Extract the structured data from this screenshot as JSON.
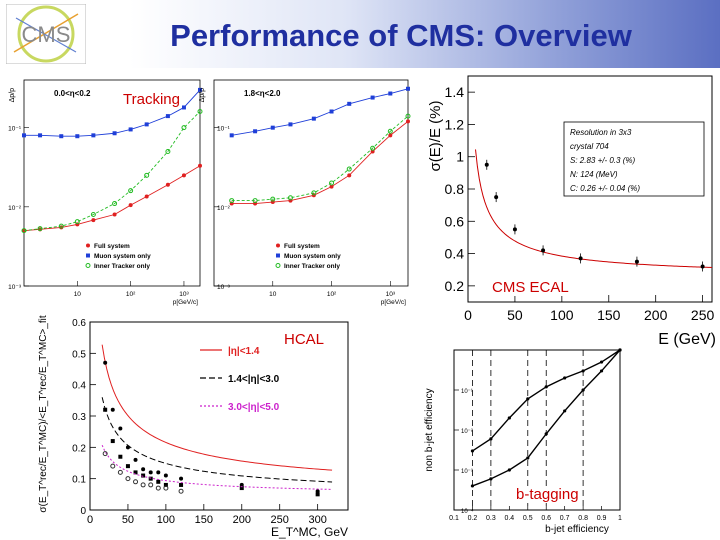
{
  "header": {
    "title": "Performance of CMS: Overview"
  },
  "overlays": {
    "tracking": "Tracking",
    "cms_ecal": "CMS ECAL",
    "hcal": "HCAL",
    "btagging": "b-tagging"
  },
  "colors": {
    "red": "#e02020",
    "blue": "#1f3fd8",
    "green": "#22bb22",
    "magenta": "#cc22cc",
    "title": "#1f2fa0"
  },
  "chart_data": [
    {
      "id": "tracking_low_eta",
      "type": "line",
      "ylabel": "Δp/p",
      "xlabel": "p[GeV/c]",
      "annotation": "0.0<η<0.2",
      "xscale": "log",
      "yscale": "log",
      "xlim": [
        1,
        2000
      ],
      "ylim": [
        0.001,
        0.4
      ],
      "xticks": [
        "10",
        "10²",
        "10³"
      ],
      "yticks": [
        "10⁻¹",
        "10⁻²",
        "10⁻³"
      ],
      "series": [
        {
          "name": "Full system",
          "color": "red",
          "x": [
            1,
            2,
            5,
            10,
            20,
            50,
            100,
            200,
            500,
            1000,
            2000
          ],
          "y": [
            0.005,
            0.0052,
            0.0055,
            0.006,
            0.0068,
            0.008,
            0.0105,
            0.0135,
            0.019,
            0.025,
            0.033
          ]
        },
        {
          "name": "Muon system only",
          "color": "blue",
          "x": [
            1,
            2,
            5,
            10,
            20,
            50,
            100,
            200,
            500,
            1000,
            2000
          ],
          "y": [
            0.08,
            0.08,
            0.078,
            0.078,
            0.08,
            0.085,
            0.095,
            0.11,
            0.14,
            0.18,
            0.3
          ]
        },
        {
          "name": "Inner Tracker only",
          "color": "green",
          "x": [
            1,
            2,
            5,
            10,
            20,
            50,
            100,
            200,
            500,
            1000,
            2000
          ],
          "y": [
            0.005,
            0.0053,
            0.0057,
            0.0065,
            0.008,
            0.011,
            0.016,
            0.025,
            0.05,
            0.1,
            0.16
          ]
        }
      ]
    },
    {
      "id": "tracking_high_eta",
      "type": "line",
      "ylabel": "Δp/p",
      "xlabel": "p[GeV/c]",
      "annotation": "1.8<η<2.0",
      "xscale": "log",
      "yscale": "log",
      "xlim": [
        1,
        2000
      ],
      "ylim": [
        0.001,
        0.4
      ],
      "xticks": [
        "10",
        "10²",
        "10³"
      ],
      "yticks": [
        "10⁻¹",
        "10⁻²",
        "10⁻³"
      ],
      "series": [
        {
          "name": "Full system",
          "color": "red",
          "x": [
            2,
            5,
            10,
            20,
            50,
            100,
            200,
            500,
            1000,
            2000
          ],
          "y": [
            0.011,
            0.011,
            0.0115,
            0.012,
            0.014,
            0.018,
            0.025,
            0.05,
            0.08,
            0.12
          ]
        },
        {
          "name": "Muon system only",
          "color": "blue",
          "x": [
            2,
            5,
            10,
            20,
            50,
            100,
            200,
            500,
            1000,
            2000
          ],
          "y": [
            0.08,
            0.09,
            0.1,
            0.11,
            0.13,
            0.16,
            0.2,
            0.24,
            0.27,
            0.31
          ]
        },
        {
          "name": "Inner Tracker only",
          "color": "green",
          "x": [
            2,
            5,
            10,
            20,
            50,
            100,
            200,
            500,
            1000,
            2000
          ],
          "y": [
            0.012,
            0.012,
            0.0125,
            0.013,
            0.015,
            0.02,
            0.03,
            0.055,
            0.09,
            0.14
          ]
        }
      ]
    },
    {
      "id": "ecal_resolution",
      "type": "scatter",
      "title": "CMS ECAL",
      "xlabel": "E (GeV)",
      "ylabel": "σ(E)/E (%)",
      "xlim": [
        0,
        260
      ],
      "ylim": [
        0.1,
        1.5
      ],
      "xticks": [
        0,
        50,
        100,
        150,
        200,
        250
      ],
      "yticks": [
        0.2,
        0.4,
        0.6,
        0.8,
        1.0,
        1.2,
        1.4
      ],
      "ytick_labels": [
        "0.2",
        "0.4",
        "0.6",
        "0.8",
        "1",
        "1.2",
        "1.4"
      ],
      "legend": [
        "Resolution in 3x3",
        "crystal 704",
        "S: 2.83 +/- 0.3 (%)",
        "N: 124 (MeV)",
        "C: 0.26 +/- 0.04 (%)"
      ],
      "points": {
        "x": [
          20,
          30,
          50,
          80,
          120,
          180,
          250
        ],
        "y": [
          0.95,
          0.75,
          0.55,
          0.42,
          0.37,
          0.35,
          0.32
        ]
      },
      "fit": {
        "S": 2.83,
        "N": 0.124,
        "C": 0.26
      }
    },
    {
      "id": "hcal_resolution",
      "type": "scatter",
      "title": "HCAL",
      "xlabel": "E_T^MC, GeV",
      "ylabel": "σ(E_T^rec/E_T^MC)/<E_T^rec/E_T^MC>_fit",
      "xlim": [
        0,
        340
      ],
      "ylim": [
        0,
        0.6
      ],
      "xticks": [
        0,
        50,
        100,
        150,
        200,
        250,
        300
      ],
      "yticks": [
        0,
        0.1,
        0.2,
        0.3,
        0.4,
        0.5,
        0.6
      ],
      "legend": [
        "|η|<1.4",
        "1.4<|η|<3.0",
        "3.0<|η|<5.0"
      ],
      "series": [
        {
          "name": "|η|<1.4",
          "color": "red",
          "marker": "filled",
          "x": [
            20,
            30,
            40,
            50,
            60,
            70,
            80,
            90,
            100,
            120,
            200,
            300
          ],
          "y": [
            0.47,
            0.32,
            0.26,
            0.2,
            0.16,
            0.13,
            0.12,
            0.12,
            0.11,
            0.1,
            0.08,
            0.06
          ]
        },
        {
          "name": "1.4<|η|<3.0",
          "color": "black",
          "marker": "square",
          "x": [
            20,
            30,
            40,
            50,
            60,
            70,
            80,
            90,
            100,
            120,
            200,
            300
          ],
          "y": [
            0.32,
            0.22,
            0.17,
            0.14,
            0.12,
            0.11,
            0.1,
            0.09,
            0.08,
            0.08,
            0.07,
            0.05
          ]
        },
        {
          "name": "3.0<|η|<5.0",
          "color": "magenta",
          "marker": "open",
          "x": [
            20,
            30,
            40,
            50,
            60,
            70,
            80,
            90,
            100,
            120
          ],
          "y": [
            0.18,
            0.14,
            0.12,
            0.1,
            0.09,
            0.08,
            0.08,
            0.07,
            0.07,
            0.06
          ]
        }
      ]
    },
    {
      "id": "btagging",
      "type": "line",
      "title": "b-tagging",
      "xlabel": "b-jet efficiency",
      "ylabel": "non b-jet efficiency",
      "xlim": [
        0.1,
        1.0
      ],
      "ylim": [
        0.0001,
        1
      ],
      "yscale": "log",
      "xticks": [
        0.1,
        0.2,
        0.3,
        0.4,
        0.5,
        0.6,
        0.7,
        0.8,
        0.9,
        1
      ],
      "xtick_labels": [
        "0.1",
        "0.2",
        "0.3",
        "0.4",
        "0.5",
        "0.6",
        "0.7",
        "0.8",
        "0.9",
        "1"
      ],
      "yticks": [
        "10⁻¹",
        "10⁻²",
        "10⁻³",
        "10⁻⁴"
      ],
      "series": [
        {
          "name": "upper",
          "x": [
            0.2,
            0.3,
            0.4,
            0.5,
            0.6,
            0.7,
            0.8,
            0.9,
            1.0
          ],
          "y": [
            0.003,
            0.006,
            0.02,
            0.06,
            0.12,
            0.2,
            0.3,
            0.5,
            1.0
          ]
        },
        {
          "name": "lower",
          "x": [
            0.2,
            0.3,
            0.4,
            0.5,
            0.6,
            0.7,
            0.8,
            0.9,
            1.0
          ],
          "y": [
            0.0004,
            0.0006,
            0.001,
            0.002,
            0.008,
            0.03,
            0.1,
            0.3,
            1.0
          ]
        }
      ]
    }
  ]
}
